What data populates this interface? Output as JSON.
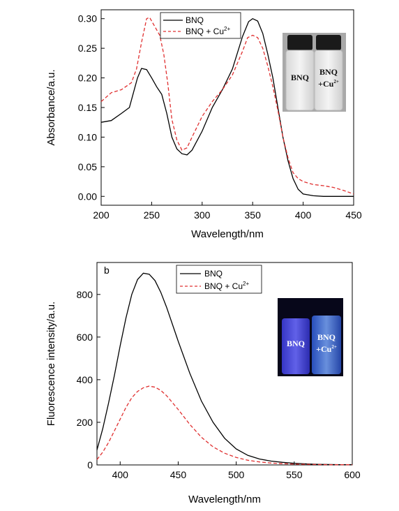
{
  "chart_data": [
    {
      "type": "line",
      "panel_label": "",
      "xlabel": "Wavelength/nm",
      "ylabel": "Absorbance/a.u.",
      "xlim": [
        200,
        450
      ],
      "ylim": [
        -0.015,
        0.315
      ],
      "xticks": [
        "200",
        "250",
        "300",
        "350",
        "400",
        "450"
      ],
      "yticks": [
        "0.00",
        "0.05",
        "0.10",
        "0.15",
        "0.20",
        "0.25",
        "0.30"
      ],
      "legend_position": "top-center",
      "series": [
        {
          "name": "BNQ",
          "style": "solid",
          "color": "#000000",
          "points": [
            [
              200,
              0.125
            ],
            [
              210,
              0.128
            ],
            [
              220,
              0.14
            ],
            [
              228,
              0.15
            ],
            [
              232,
              0.175
            ],
            [
              236,
              0.2
            ],
            [
              240,
              0.216
            ],
            [
              245,
              0.214
            ],
            [
              250,
              0.2
            ],
            [
              255,
              0.185
            ],
            [
              260,
              0.172
            ],
            [
              265,
              0.14
            ],
            [
              270,
              0.1
            ],
            [
              275,
              0.08
            ],
            [
              280,
              0.072
            ],
            [
              285,
              0.07
            ],
            [
              290,
              0.078
            ],
            [
              300,
              0.11
            ],
            [
              310,
              0.15
            ],
            [
              320,
              0.18
            ],
            [
              330,
              0.215
            ],
            [
              340,
              0.27
            ],
            [
              346,
              0.295
            ],
            [
              350,
              0.3
            ],
            [
              355,
              0.296
            ],
            [
              360,
              0.275
            ],
            [
              365,
              0.24
            ],
            [
              370,
              0.2
            ],
            [
              375,
              0.15
            ],
            [
              380,
              0.1
            ],
            [
              385,
              0.06
            ],
            [
              390,
              0.03
            ],
            [
              395,
              0.012
            ],
            [
              400,
              0.004
            ],
            [
              410,
              0.001
            ],
            [
              420,
              0.0
            ],
            [
              450,
              0.0
            ]
          ]
        },
        {
          "name": "BNQ + Cu2+",
          "style": "dashed",
          "color": "#e03030",
          "points": [
            [
              200,
              0.16
            ],
            [
              210,
              0.175
            ],
            [
              220,
              0.18
            ],
            [
              230,
              0.192
            ],
            [
              235,
              0.215
            ],
            [
              240,
              0.26
            ],
            [
              245,
              0.3
            ],
            [
              248,
              0.302
            ],
            [
              252,
              0.29
            ],
            [
              258,
              0.272
            ],
            [
              262,
              0.24
            ],
            [
              266,
              0.19
            ],
            [
              270,
              0.13
            ],
            [
              275,
              0.095
            ],
            [
              280,
              0.078
            ],
            [
              285,
              0.082
            ],
            [
              290,
              0.1
            ],
            [
              300,
              0.135
            ],
            [
              310,
              0.16
            ],
            [
              320,
              0.18
            ],
            [
              330,
              0.205
            ],
            [
              340,
              0.245
            ],
            [
              345,
              0.268
            ],
            [
              350,
              0.272
            ],
            [
              355,
              0.268
            ],
            [
              360,
              0.25
            ],
            [
              365,
              0.22
            ],
            [
              370,
              0.185
            ],
            [
              375,
              0.145
            ],
            [
              380,
              0.1
            ],
            [
              385,
              0.065
            ],
            [
              390,
              0.04
            ],
            [
              395,
              0.03
            ],
            [
              400,
              0.025
            ],
            [
              410,
              0.02
            ],
            [
              420,
              0.018
            ],
            [
              430,
              0.015
            ],
            [
              440,
              0.01
            ],
            [
              450,
              0.004
            ]
          ]
        }
      ],
      "inset": {
        "labels": [
          "BNQ",
          "BNQ",
          "+Cu2+"
        ]
      }
    },
    {
      "type": "line",
      "panel_label": "b",
      "xlabel": "Wavelength/nm",
      "ylabel": "Fluorescence intensity/a.u.",
      "xlim": [
        380,
        600
      ],
      "ylim": [
        0,
        950
      ],
      "xticks": [
        "400",
        "450",
        "500",
        "550",
        "600"
      ],
      "yticks": [
        "0",
        "200",
        "400",
        "600",
        "800"
      ],
      "legend_position": "top-center",
      "series": [
        {
          "name": "BNQ",
          "style": "solid",
          "color": "#000000",
          "points": [
            [
              380,
              70
            ],
            [
              385,
              170
            ],
            [
              390,
              290
            ],
            [
              395,
              420
            ],
            [
              400,
              560
            ],
            [
              405,
              690
            ],
            [
              410,
              800
            ],
            [
              415,
              870
            ],
            [
              420,
              900
            ],
            [
              425,
              895
            ],
            [
              430,
              865
            ],
            [
              435,
              810
            ],
            [
              440,
              740
            ],
            [
              450,
              580
            ],
            [
              460,
              430
            ],
            [
              470,
              300
            ],
            [
              480,
              200
            ],
            [
              490,
              125
            ],
            [
              500,
              75
            ],
            [
              510,
              45
            ],
            [
              520,
              28
            ],
            [
              530,
              18
            ],
            [
              540,
              12
            ],
            [
              550,
              8
            ],
            [
              560,
              5
            ],
            [
              570,
              3
            ],
            [
              580,
              2
            ],
            [
              590,
              1
            ],
            [
              600,
              1
            ]
          ]
        },
        {
          "name": "BNQ + Cu2+",
          "style": "dashed",
          "color": "#e03030",
          "points": [
            [
              380,
              25
            ],
            [
              385,
              60
            ],
            [
              390,
              105
            ],
            [
              395,
              160
            ],
            [
              400,
              215
            ],
            [
              405,
              270
            ],
            [
              410,
              315
            ],
            [
              415,
              345
            ],
            [
              420,
              362
            ],
            [
              425,
              370
            ],
            [
              430,
              365
            ],
            [
              435,
              350
            ],
            [
              440,
              325
            ],
            [
              450,
              260
            ],
            [
              460,
              190
            ],
            [
              470,
              130
            ],
            [
              480,
              85
            ],
            [
              490,
              55
            ],
            [
              500,
              35
            ],
            [
              510,
              22
            ],
            [
              520,
              14
            ],
            [
              530,
              9
            ],
            [
              540,
              6
            ],
            [
              550,
              4
            ],
            [
              560,
              3
            ],
            [
              570,
              2
            ],
            [
              580,
              1
            ],
            [
              590,
              1
            ],
            [
              600,
              1
            ]
          ]
        }
      ],
      "inset": {
        "labels": [
          "BNQ",
          "BNQ",
          "+Cu2+"
        ]
      }
    }
  ]
}
